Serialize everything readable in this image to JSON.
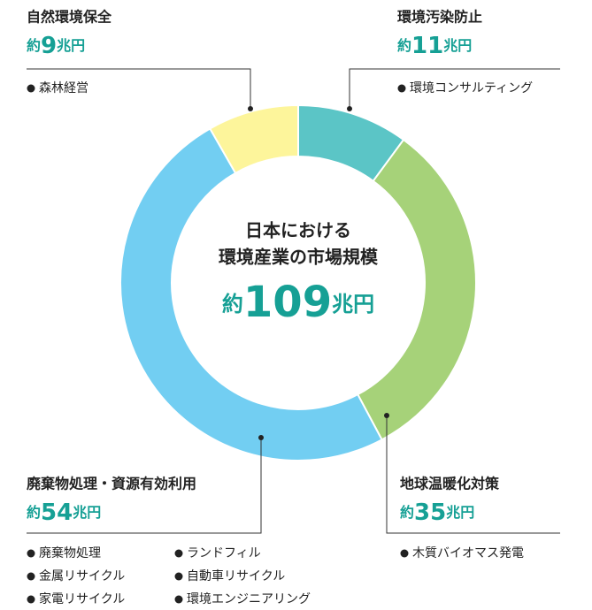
{
  "chart_data": {
    "type": "donut",
    "center_title": [
      "日本における",
      "環境産業の市場規模"
    ],
    "approx": "約",
    "unit": "兆円",
    "total": 109,
    "series": [
      {
        "name": "環境汚染防止",
        "color": "#5bc5c6",
        "value": 11,
        "items": [
          "環境コンサルティング"
        ]
      },
      {
        "name": "地球温暖化対策",
        "color": "#a6d279",
        "value": 35,
        "items": [
          "木質バイオマス発電"
        ]
      },
      {
        "name": "廃棄物処理・資源有効利用",
        "color": "#72cef2",
        "value": 54,
        "items": [
          "廃棄物処理",
          "金属リサイクル",
          "家電リサイクル",
          "ランドフィル",
          "自動車リサイクル",
          "環境エンジニアリング"
        ]
      },
      {
        "name": "自然環境保全",
        "color": "#fdf59b",
        "value": 9,
        "items": [
          "森林経営"
        ]
      }
    ]
  }
}
